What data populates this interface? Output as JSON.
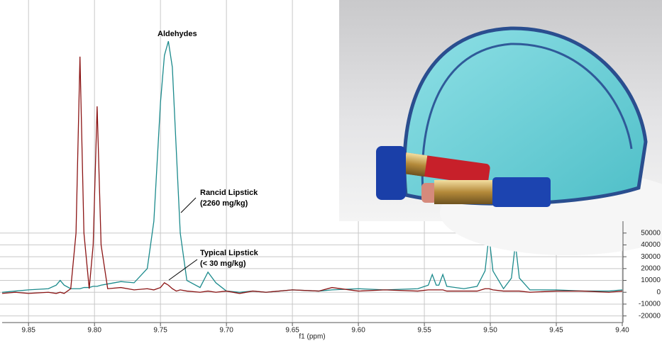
{
  "chart_data": {
    "type": "line",
    "x_label": "f1 (ppm)",
    "xlim": [
      9.87,
      9.4
    ],
    "xticks": [
      9.85,
      {
        "value": 9.8,
        "label": "9.80"
      },
      9.75,
      {
        "value": 9.7,
        "label": "9.70"
      },
      9.65,
      {
        "value": 9.6,
        "label": "9.60"
      },
      9.55,
      {
        "value": 9.5,
        "label": "9.50"
      },
      9.45,
      {
        "value": 9.4,
        "label": "9.40"
      }
    ],
    "ylim": [
      -25000,
      245000
    ],
    "yticks": [
      -20000,
      -10000,
      0,
      10000,
      20000,
      30000,
      40000,
      50000
    ],
    "grid": true,
    "annotations": [
      [
        "Aldehydes"
      ],
      [
        "Rancid Lipstick",
        "(2260 mg/kg)"
      ],
      [
        "Typical Lipstick",
        "(< 30 mg/kg)"
      ]
    ],
    "x": [
      9.87,
      9.86,
      9.85,
      9.835,
      9.829,
      9.826,
      9.823,
      9.818,
      9.814,
      9.811,
      9.808,
      9.804,
      9.801,
      9.798,
      9.795,
      9.79,
      9.78,
      9.77,
      9.76,
      9.755,
      9.75,
      9.747,
      9.744,
      9.741,
      9.738,
      9.735,
      9.73,
      9.72,
      9.714,
      9.708,
      9.7,
      9.69,
      9.68,
      9.67,
      9.65,
      9.63,
      9.62,
      9.6,
      9.58,
      9.555,
      9.547,
      9.544,
      9.541,
      9.539,
      9.536,
      9.533,
      9.52,
      9.51,
      9.504,
      9.501,
      9.498,
      9.49,
      9.484,
      9.481,
      9.478,
      9.47,
      9.45,
      9.43,
      9.41,
      9.4
    ],
    "series": [
      {
        "color": "#1b8a8c",
        "values": [
          0,
          1000,
          2000,
          3000,
          6000,
          10000,
          6000,
          3000,
          3000,
          3000,
          4000,
          4000,
          5000,
          5000,
          6000,
          7000,
          9000,
          8000,
          20000,
          60000,
          160000,
          200000,
          212000,
          190000,
          120000,
          50000,
          10000,
          4000,
          17000,
          8000,
          1000,
          0,
          1000,
          0,
          2000,
          1000,
          2000,
          3000,
          2000,
          3000,
          6000,
          15000,
          6000,
          6000,
          15000,
          5000,
          3000,
          5000,
          18000,
          48000,
          18000,
          3000,
          12000,
          41000,
          12000,
          2000,
          2000,
          1000,
          1000,
          2000
        ]
      },
      {
        "color": "#8b1414",
        "values": [
          -1000,
          0,
          -1000,
          0,
          -1000,
          0,
          -1000,
          3000,
          50000,
          199000,
          50000,
          3000,
          40000,
          157000,
          40000,
          3000,
          4000,
          2000,
          3000,
          2000,
          4000,
          8000,
          6000,
          3000,
          1000,
          2000,
          1000,
          0,
          1000,
          0,
          1000,
          -1000,
          1000,
          0,
          2000,
          1000,
          4000,
          1000,
          2000,
          1000,
          2000,
          2000,
          2000,
          2000,
          2000,
          1000,
          1000,
          1000,
          3000,
          3000,
          2000,
          1000,
          1000,
          1000,
          1000,
          0,
          1000,
          1000,
          0,
          1000
        ]
      }
    ]
  }
}
